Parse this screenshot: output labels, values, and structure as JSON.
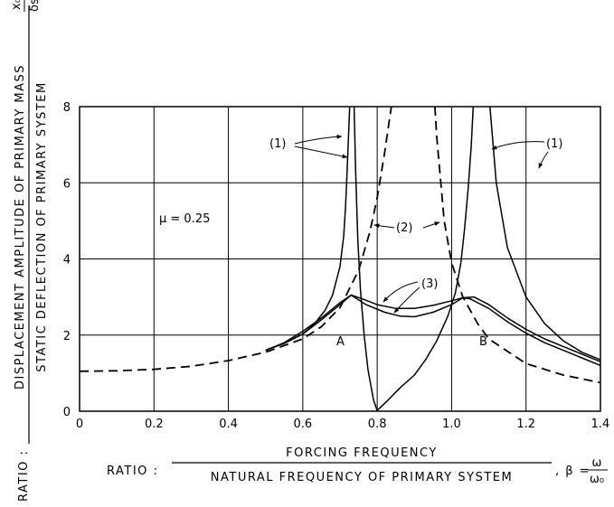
{
  "chart_data": {
    "type": "line",
    "xlabel": {
      "prefix": "RATIO :",
      "numerator": "FORCING  FREQUENCY",
      "denominator": "NATURAL  FREQUENCY  OF  PRIMARY  SYSTEM",
      "suffix": ", β =",
      "symbol_num": "ω",
      "symbol_den": "ω₀"
    },
    "ylabel": {
      "prefix": "RATIO :",
      "numerator": "DISPLACEMENT  AMPLITUDE  OF  PRIMARY  MASS",
      "denominator": "STATIC  DEFLECTION  OF  PRIMARY  SYSTEM",
      "symbol_num": "x₀",
      "symbol_den": "δst"
    },
    "xlim": [
      0,
      1.4
    ],
    "ylim": [
      0,
      8
    ],
    "xticks": [
      0,
      0.2,
      0.4,
      0.6,
      0.8,
      1.0,
      1.2,
      1.4
    ],
    "xtick_labels": [
      "0",
      "0.2",
      "0.4",
      "0.6",
      "0.8",
      "1.0",
      "1.2",
      "1.4"
    ],
    "yticks": [
      0,
      2,
      4,
      6,
      8
    ],
    "ytick_labels": [
      "0",
      "2",
      "4",
      "6",
      "8"
    ],
    "grid": true,
    "series": [
      {
        "label": "(1)",
        "style": "solid",
        "width": 1.5,
        "segments": [
          [
            [
              0.5,
              1.6
            ],
            [
              0.55,
              1.78
            ],
            [
              0.6,
              2.03
            ],
            [
              0.63,
              2.28
            ],
            [
              0.66,
              2.65
            ],
            [
              0.68,
              3.05
            ],
            [
              0.7,
              3.8
            ],
            [
              0.71,
              4.6
            ],
            [
              0.715,
              5.4
            ],
            [
              0.72,
              6.5
            ],
            [
              0.726,
              8.0
            ]
          ],
          [
            [
              0.738,
              8.0
            ],
            [
              0.742,
              6.3
            ],
            [
              0.748,
              4.5
            ],
            [
              0.755,
              3.2
            ],
            [
              0.765,
              2.0
            ],
            [
              0.775,
              1.1
            ],
            [
              0.79,
              0.3
            ],
            [
              0.8,
              0.02
            ],
            [
              0.83,
              0.3
            ],
            [
              0.86,
              0.6
            ],
            [
              0.9,
              0.95
            ],
            [
              0.93,
              1.35
            ],
            [
              0.96,
              1.85
            ],
            [
              0.99,
              2.5
            ],
            [
              1.01,
              3.1
            ],
            [
              1.025,
              3.9
            ],
            [
              1.035,
              4.8
            ],
            [
              1.045,
              5.9
            ],
            [
              1.053,
              7.0
            ],
            [
              1.058,
              8.0
            ]
          ],
          [
            [
              1.103,
              8.0
            ],
            [
              1.12,
              6.0
            ],
            [
              1.15,
              4.3
            ],
            [
              1.2,
              3.0
            ],
            [
              1.25,
              2.3
            ],
            [
              1.3,
              1.85
            ],
            [
              1.35,
              1.55
            ],
            [
              1.4,
              1.35
            ]
          ]
        ]
      },
      {
        "label": "(2)",
        "style": "dashed",
        "width": 1.8,
        "segments": [
          [
            [
              0,
              1.05
            ],
            [
              0.1,
              1.06
            ],
            [
              0.2,
              1.1
            ],
            [
              0.3,
              1.18
            ],
            [
              0.4,
              1.33
            ],
            [
              0.5,
              1.55
            ],
            [
              0.6,
              1.9
            ],
            [
              0.65,
              2.22
            ],
            [
              0.7,
              2.72
            ],
            [
              0.75,
              3.7
            ],
            [
              0.78,
              4.7
            ],
            [
              0.8,
              5.6
            ],
            [
              0.82,
              6.8
            ],
            [
              0.832,
              7.6
            ],
            [
              0.838,
              8.0
            ]
          ],
          [
            [
              0.955,
              8.0
            ],
            [
              0.96,
              7.2
            ],
            [
              0.97,
              6.1
            ],
            [
              0.98,
              5.0
            ],
            [
              1.0,
              3.9
            ],
            [
              1.03,
              3.0
            ],
            [
              1.07,
              2.3
            ],
            [
              1.1,
              1.9
            ],
            [
              1.2,
              1.25
            ],
            [
              1.3,
              0.95
            ],
            [
              1.4,
              0.75
            ]
          ]
        ]
      },
      {
        "label": "(3)",
        "style": "solid",
        "width": 1.5,
        "segments": [
          [
            [
              0.5,
              1.6
            ],
            [
              0.55,
              1.8
            ],
            [
              0.6,
              2.1
            ],
            [
              0.65,
              2.45
            ],
            [
              0.7,
              2.85
            ],
            [
              0.73,
              3.05
            ],
            [
              0.76,
              2.95
            ],
            [
              0.8,
              2.8
            ],
            [
              0.85,
              2.7
            ],
            [
              0.9,
              2.7
            ],
            [
              0.95,
              2.78
            ],
            [
              1.0,
              2.9
            ],
            [
              1.03,
              2.98
            ],
            [
              1.06,
              3.0
            ],
            [
              1.1,
              2.8
            ],
            [
              1.15,
              2.45
            ],
            [
              1.2,
              2.15
            ],
            [
              1.25,
              1.9
            ],
            [
              1.3,
              1.7
            ],
            [
              1.35,
              1.5
            ],
            [
              1.4,
              1.3
            ]
          ],
          [
            [
              0.5,
              1.6
            ],
            [
              0.55,
              1.78
            ],
            [
              0.6,
              2.03
            ],
            [
              0.65,
              2.4
            ],
            [
              0.7,
              2.8
            ],
            [
              0.73,
              3.05
            ],
            [
              0.77,
              2.8
            ],
            [
              0.82,
              2.6
            ],
            [
              0.86,
              2.5
            ],
            [
              0.9,
              2.48
            ],
            [
              0.95,
              2.6
            ],
            [
              1.0,
              2.8
            ],
            [
              1.03,
              2.98
            ],
            [
              1.05,
              2.95
            ],
            [
              1.1,
              2.7
            ],
            [
              1.15,
              2.35
            ],
            [
              1.2,
              2.05
            ],
            [
              1.25,
              1.8
            ],
            [
              1.3,
              1.6
            ],
            [
              1.35,
              1.4
            ],
            [
              1.4,
              1.2
            ]
          ]
        ]
      }
    ],
    "annotations": {
      "mu": "μ = 0.25",
      "point_a": "A",
      "point_b": "B",
      "label_1_left": "(1)",
      "label_1_right": "(1)",
      "label_2": "(2)",
      "label_3": "(3)"
    }
  }
}
